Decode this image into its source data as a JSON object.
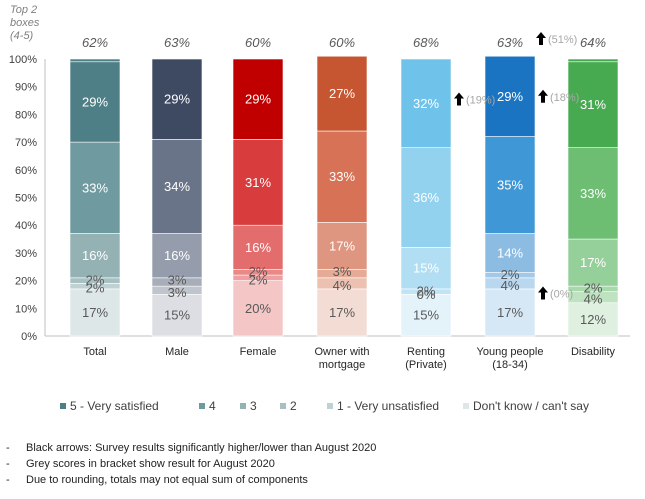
{
  "chart_data": {
    "type": "bar",
    "stacked": true,
    "ylabel": "Top 2 boxes (4-5)",
    "ylabel_lines": [
      "Top 2",
      "boxes",
      "(4-5)"
    ],
    "ylim": [
      0,
      100
    ],
    "yticks": [
      "0%",
      "10%",
      "20%",
      "30%",
      "40%",
      "50%",
      "60%",
      "70%",
      "80%",
      "90%",
      "100%"
    ],
    "grid": false,
    "legend_position": "bottom",
    "categories": [
      [
        "Total"
      ],
      [
        "Male"
      ],
      [
        "Female"
      ],
      [
        "Owner with",
        "mortgage"
      ],
      [
        "Renting",
        "(Private)"
      ],
      [
        "Young people",
        "(18-34)"
      ],
      [
        "Disability"
      ]
    ],
    "top2": [
      "62%",
      "63%",
      "60%",
      "60%",
      "68%",
      "63%",
      "64%"
    ],
    "series": [
      {
        "name": "Don't know / can't say",
        "values": [
          17,
          15,
          20,
          17,
          15,
          17,
          12
        ]
      },
      {
        "name": "1 - Very unsatisfied",
        "values": [
          2,
          3,
          2,
          4,
          0,
          4,
          4
        ]
      },
      {
        "name": "2",
        "values": [
          2,
          3,
          2,
          3,
          2,
          2,
          2
        ]
      },
      {
        "name": "3",
        "values": [
          16,
          16,
          16,
          17,
          15,
          14,
          17
        ]
      },
      {
        "name": "4",
        "values": [
          33,
          34,
          31,
          33,
          36,
          35,
          33
        ]
      },
      {
        "name": "5 - Very satisfied",
        "values": [
          29,
          29,
          29,
          27,
          32,
          29,
          31
        ]
      }
    ],
    "legend_order": [
      "5 - Very satisfied",
      "4",
      "3",
      "2",
      "1 - Very unsatisfied",
      "Don't know / can't say"
    ],
    "colors": {
      "Total": [
        "#dde7e8",
        "#c0d1d3",
        "#a9c0c3",
        "#94b1b4",
        "#6f9aa0",
        "#4f7f86"
      ],
      "Male": [
        "#dcdee3",
        "#c0c4cc",
        "#a8aeb9",
        "#959cab",
        "#6a7488",
        "#3e4a62"
      ],
      "Female": [
        "#f4c6c6",
        "#ef9f9f",
        "#ea8787",
        "#e36d6d",
        "#d83c3c",
        "#c00000"
      ],
      "Owner": [
        "#f3dcd4",
        "#ecc1b2",
        "#e5ab97",
        "#df9680",
        "#d77256",
        "#c65531"
      ],
      "Renting": [
        "#e4f3fa",
        "#d0ebf7",
        "#c0e4f5",
        "#b1def3",
        "#93d2ef",
        "#6fc3ea"
      ],
      "Young": [
        "#d6e7f5",
        "#b9d7ee",
        "#a3c9e8",
        "#8dbce3",
        "#3f97d6",
        "#1a74c2"
      ],
      "Disability": [
        "#dff0e0",
        "#bfe2c1",
        "#a9d8ad",
        "#95cf99",
        "#6dbd73",
        "#47aa50"
      ]
    },
    "annotations": [
      {
        "category": "Renting (Private)",
        "arrow": "up",
        "text": "(19%)",
        "y": 85
      },
      {
        "category": "Young people (18-34)",
        "arrow": "up",
        "text": "(18%)",
        "y": 86
      },
      {
        "category": "Young people (18-34)",
        "arrow": "up",
        "text": "(0%)",
        "y": 15
      },
      {
        "category": "Young people (18-34)",
        "arrow": "up",
        "text": "(51%)",
        "y": "top"
      }
    ]
  },
  "notes": [
    "Black arrows: Survey results significantly higher/lower than August 2020",
    "Grey scores in bracket show result for August 2020",
    "Due to rounding, totals may not equal sum of components"
  ],
  "note_bullet": "-"
}
